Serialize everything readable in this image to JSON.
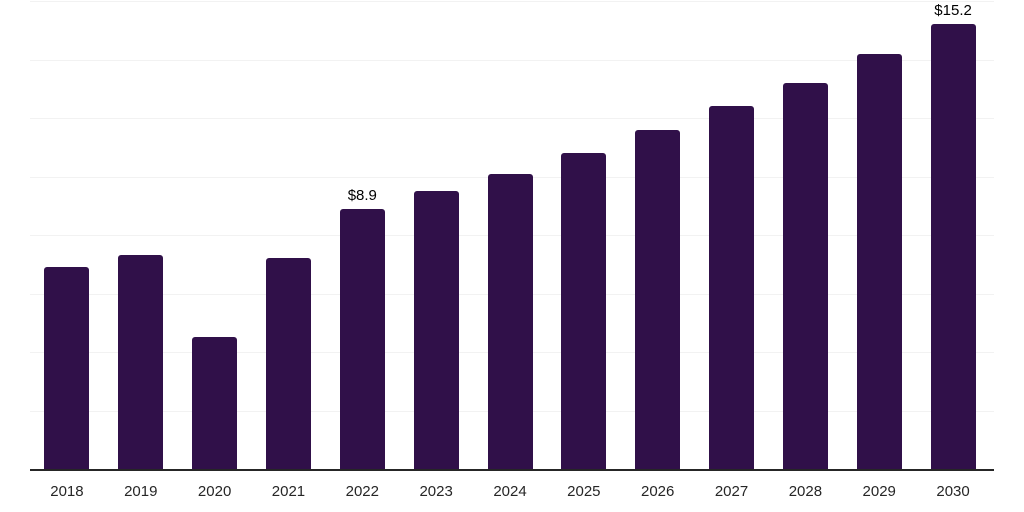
{
  "chart_data": {
    "type": "bar",
    "title": "",
    "xlabel": "",
    "ylabel": "",
    "categories": [
      "2018",
      "2019",
      "2020",
      "2021",
      "2022",
      "2023",
      "2024",
      "2025",
      "2026",
      "2027",
      "2028",
      "2029",
      "2030"
    ],
    "values": [
      6.9,
      7.3,
      4.5,
      7.2,
      8.9,
      9.5,
      10.1,
      10.8,
      11.6,
      12.4,
      13.2,
      14.2,
      15.2
    ],
    "data_labels": {
      "2022": "$8.9",
      "2030": "$15.2"
    },
    "ylim": [
      0,
      16
    ],
    "grid": true,
    "grid_step": 2,
    "legend": false,
    "colors": {
      "bar": "#301049",
      "gridline": "#f2f2f2",
      "axis": "#262626",
      "tick_label": "#262626",
      "value_label": "#000000",
      "background": "#ffffff"
    }
  }
}
